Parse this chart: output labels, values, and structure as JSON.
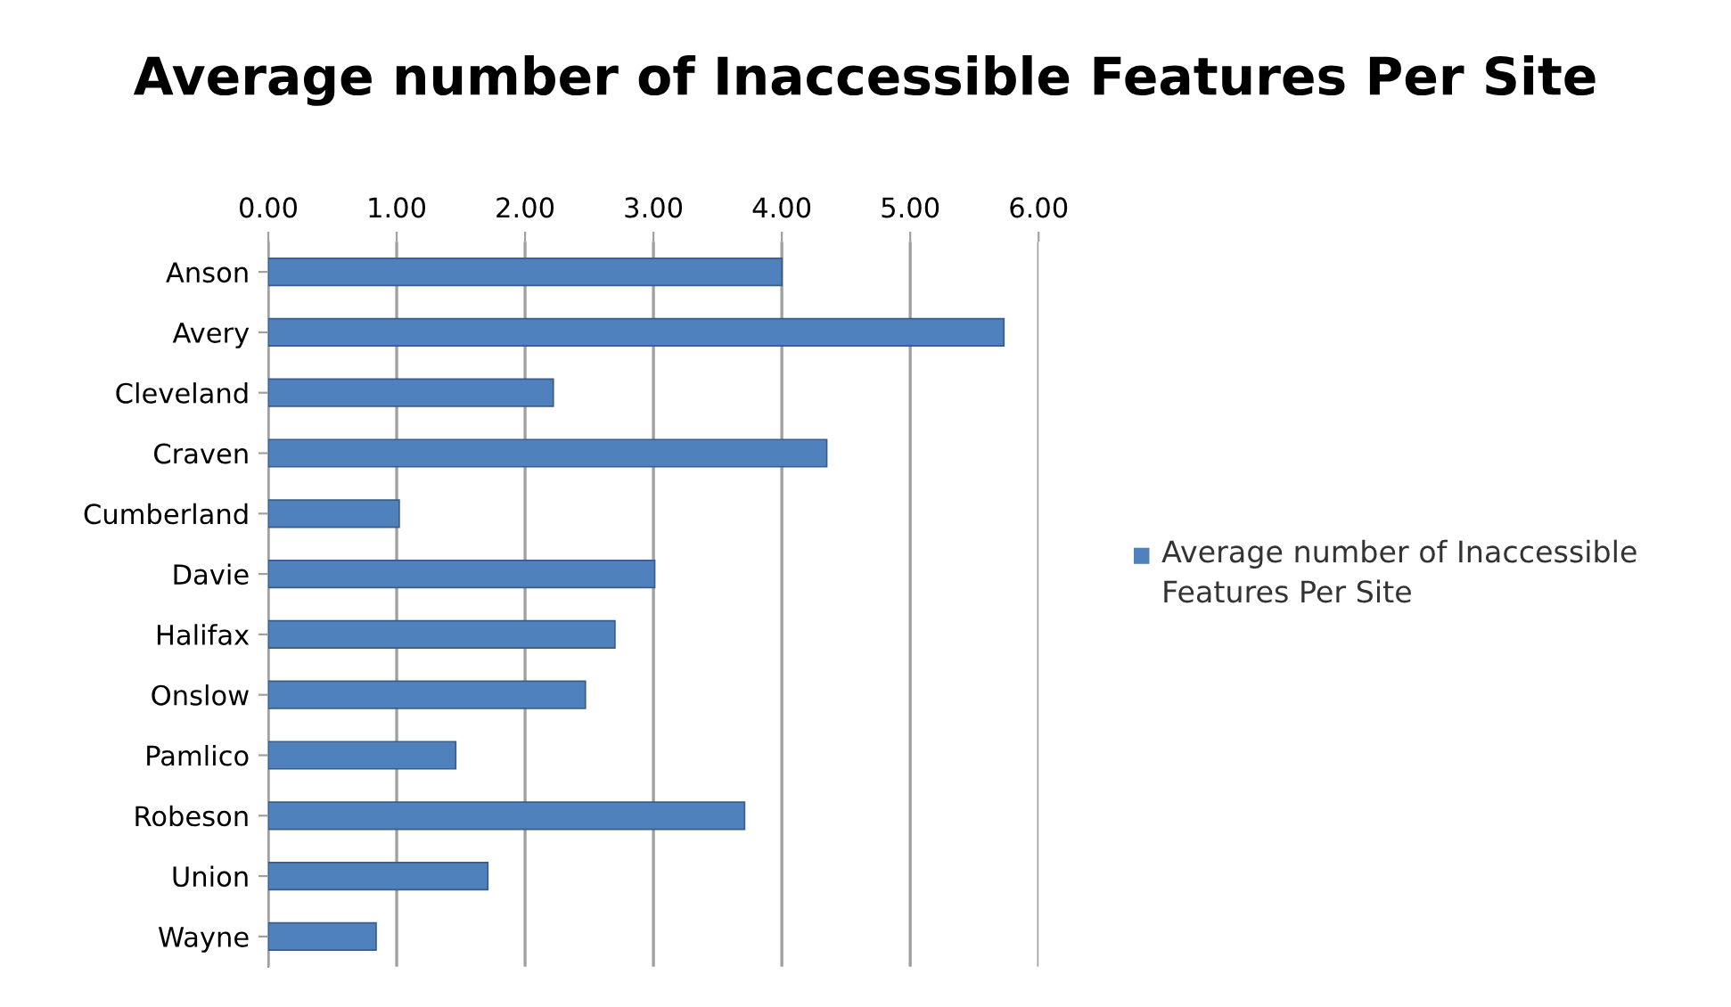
{
  "chart_data": {
    "type": "bar",
    "orientation": "horizontal",
    "title": "Average number of Inaccessible Features Per Site",
    "categories": [
      "Anson",
      "Avery",
      "Cleveland",
      "Craven",
      "Cumberland",
      "Davie",
      "Halifax",
      "Onslow",
      "Pamlico",
      "Robeson",
      "Union",
      "Wayne"
    ],
    "series": [
      {
        "name": "Average number of Inaccessible Features Per Site",
        "color": "#4f81bd",
        "values": [
          4.0,
          5.73,
          2.22,
          4.35,
          1.02,
          3.01,
          2.7,
          2.47,
          1.46,
          3.71,
          1.71,
          0.84
        ]
      }
    ],
    "xlim": [
      0,
      6
    ],
    "xticks": [
      {
        "value": 0,
        "label": "0.00"
      },
      {
        "value": 1,
        "label": "1.00"
      },
      {
        "value": 2,
        "label": "2.00"
      },
      {
        "value": 3,
        "label": "3.00"
      },
      {
        "value": 4,
        "label": "4.00"
      },
      {
        "value": 5,
        "label": "5.00"
      },
      {
        "value": 6,
        "label": "6.00"
      }
    ],
    "grid": "x",
    "legend": "right"
  }
}
